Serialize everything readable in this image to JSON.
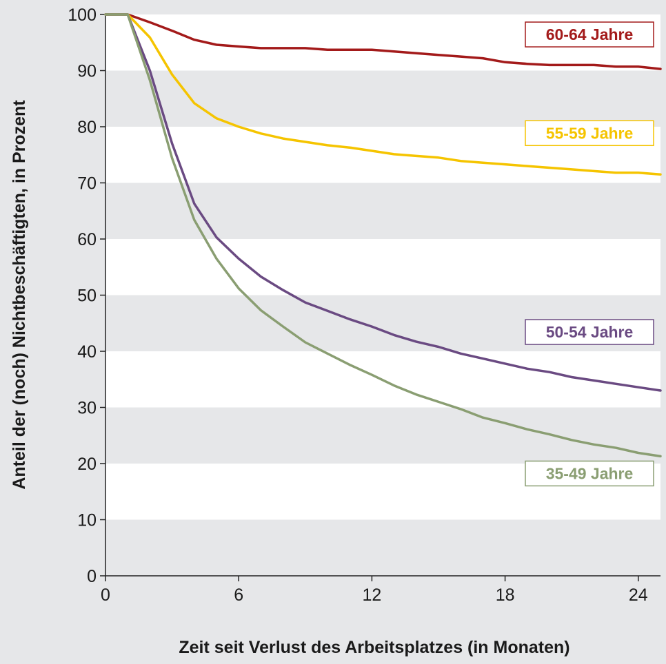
{
  "chart_data": {
    "type": "line",
    "xlabel": "Zeit seit Verlust des Arbeitsplatzes (in Monaten)",
    "ylabel": "Anteil der (noch) Nichtbeschäftigten, in Prozent",
    "xlim": [
      0,
      25
    ],
    "ylim": [
      0,
      100
    ],
    "xticks": [
      0,
      6,
      12,
      18,
      24
    ],
    "yticks": [
      0,
      10,
      20,
      30,
      40,
      50,
      60,
      70,
      80,
      90,
      100
    ],
    "grid": "horizontal bands",
    "x": [
      0,
      1,
      2,
      3,
      4,
      5,
      6,
      7,
      8,
      9,
      10,
      11,
      12,
      13,
      14,
      15,
      16,
      17,
      18,
      19,
      20,
      21,
      22,
      23,
      24,
      25
    ],
    "series": [
      {
        "name": "60-64 Jahre",
        "color": "#a31a1a",
        "values": [
          100,
          100,
          98.6,
          97.1,
          95.5,
          94.6,
          94.3,
          94.0,
          94.0,
          94.0,
          93.7,
          93.7,
          93.7,
          93.4,
          93.1,
          92.8,
          92.5,
          92.2,
          91.5,
          91.2,
          91.0,
          91.0,
          91.0,
          90.7,
          90.7,
          90.3
        ]
      },
      {
        "name": "55-59 Jahre",
        "color": "#f5c400",
        "values": [
          100,
          100,
          95.9,
          89.3,
          84.2,
          81.5,
          80.0,
          78.8,
          77.9,
          77.3,
          76.7,
          76.3,
          75.7,
          75.1,
          74.8,
          74.5,
          73.9,
          73.6,
          73.3,
          73.0,
          72.7,
          72.4,
          72.1,
          71.8,
          71.8,
          71.5
        ]
      },
      {
        "name": "50-54 Jahre",
        "color": "#6a4a82",
        "values": [
          100,
          100,
          90.0,
          77.0,
          66.3,
          60.3,
          56.5,
          53.3,
          50.9,
          48.7,
          47.2,
          45.7,
          44.4,
          42.9,
          41.7,
          40.8,
          39.6,
          38.7,
          37.8,
          36.9,
          36.3,
          35.4,
          34.8,
          34.2,
          33.6,
          33.0
        ]
      },
      {
        "name": "35-49 Jahre",
        "color": "#8a9e72",
        "values": [
          100,
          100,
          88.3,
          74.4,
          63.4,
          56.5,
          51.2,
          47.3,
          44.4,
          41.6,
          39.6,
          37.6,
          35.8,
          33.9,
          32.3,
          31.0,
          29.7,
          28.2,
          27.2,
          26.1,
          25.2,
          24.2,
          23.4,
          22.8,
          21.9,
          21.3
        ]
      }
    ]
  }
}
